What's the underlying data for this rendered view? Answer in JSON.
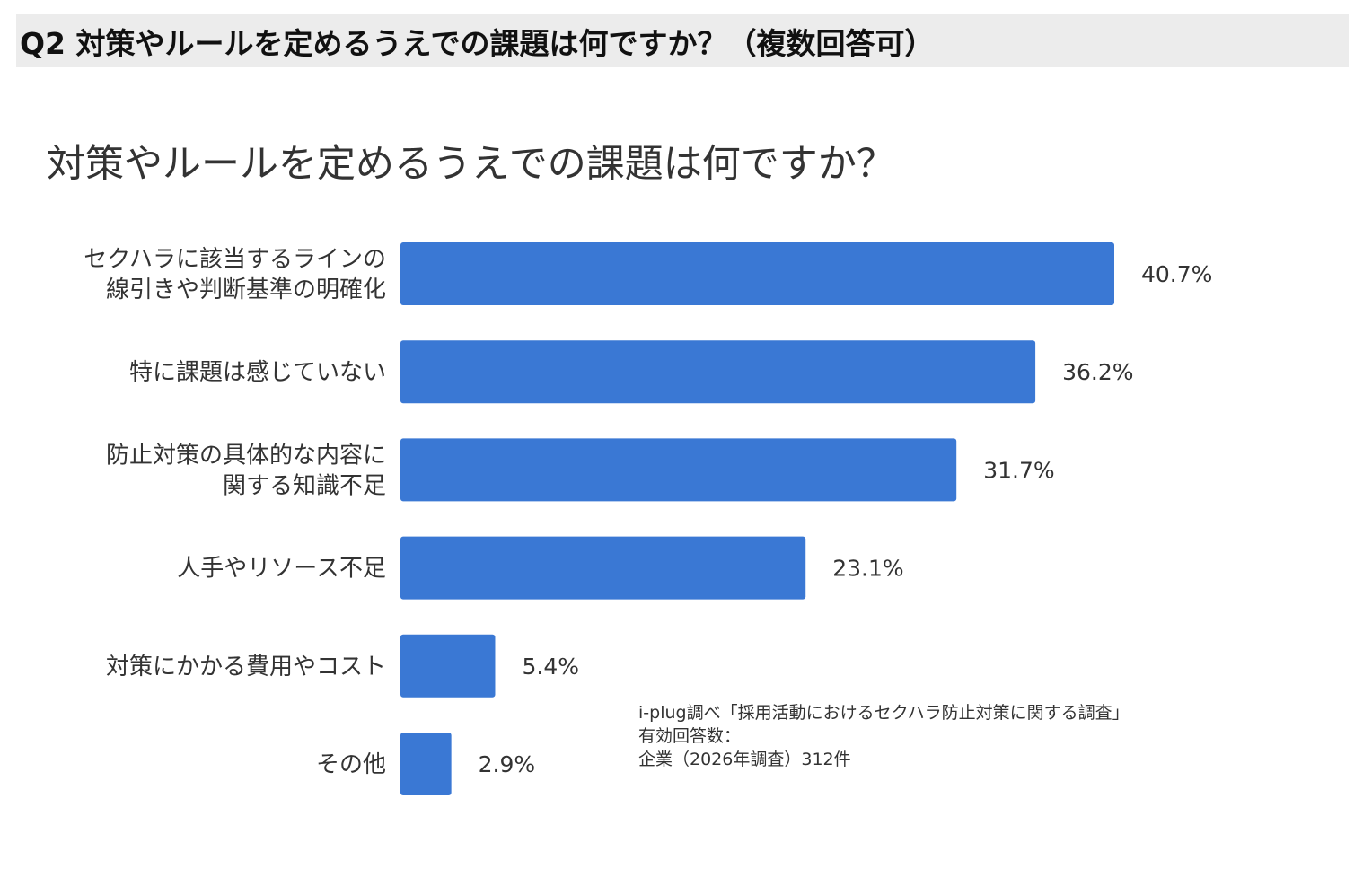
{
  "header": {
    "title": "Q2 対策やルールを定めるうえでの課題は何ですか？（複数回答可）"
  },
  "chart_data": {
    "type": "bar",
    "orientation": "horizontal",
    "title": "対策やルールを定めるうえでの課題は何ですか？",
    "categories": [
      [
        "セクハラに該当するラインの",
        "線引きや判断基準の明確化"
      ],
      [
        "特に課題は感じていない"
      ],
      [
        "防止対策の具体的な内容に",
        "関する知識不足"
      ],
      [
        "人手やリソース不足"
      ],
      [
        "対策にかかる費用やコスト"
      ],
      [
        "その他"
      ]
    ],
    "values": [
      40.7,
      36.2,
      31.7,
      23.1,
      5.4,
      2.9
    ],
    "value_labels": [
      "40.7%",
      "36.2%",
      "31.7%",
      "23.1%",
      "5.4%",
      "2.9%"
    ],
    "unit": "%",
    "xlabel": "",
    "ylabel": "",
    "grid": false,
    "bar_color": "#3a78d4"
  },
  "source_note": {
    "line1": "i-plug調べ「採用活動におけるセクハラ防止対策に関する調査」",
    "line2": "有効回答数：",
    "line3": "企業（2026年調査）312件"
  }
}
